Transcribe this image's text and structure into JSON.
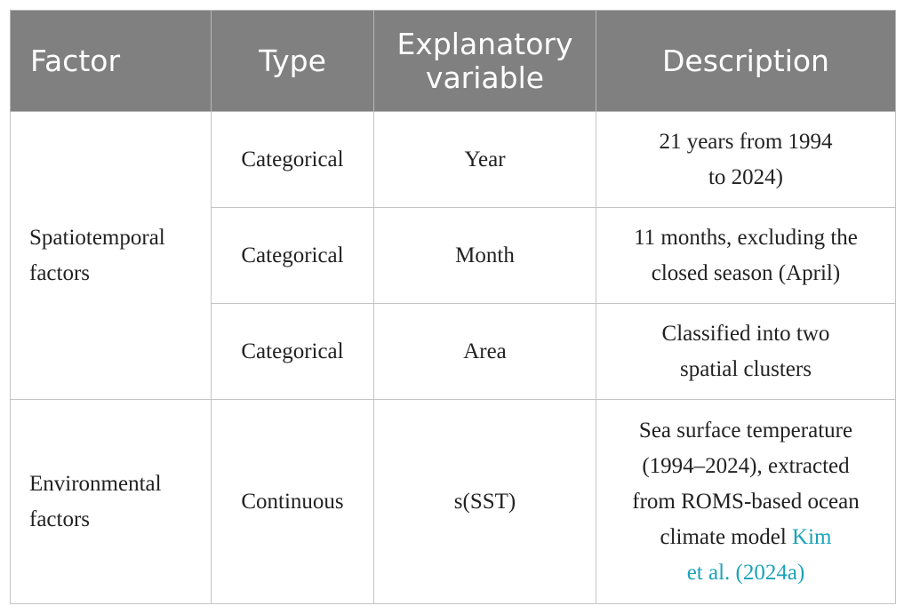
{
  "table": {
    "headers": {
      "factor": "Factor",
      "type": "Type",
      "variable_line1": "Explanatory",
      "variable_line2": "variable",
      "description": "Description"
    },
    "groups": [
      {
        "factor_line1": "Spatiotemporal",
        "factor_line2": "factors",
        "rows": [
          {
            "type": "Categorical",
            "variable": "Year",
            "description_lines": [
              "21 years from 1994",
              "to 2024)"
            ]
          },
          {
            "type": "Categorical",
            "variable": "Month",
            "description_lines": [
              "11 months, excluding the",
              "closed season (April)"
            ]
          },
          {
            "type": "Categorical",
            "variable": "Area",
            "description_lines": [
              "Classified into two",
              "spatial clusters"
            ]
          }
        ]
      },
      {
        "factor_line1": "Environmental",
        "factor_line2": "factors",
        "rows": [
          {
            "type": "Continuous",
            "variable": "s(SST)",
            "description_lines": [
              "Sea surface temperature",
              "(1994–2024), extracted",
              "from ROMS-based ocean"
            ],
            "description_line4_text": "climate model ",
            "citation_part1": "Kim",
            "citation_part2": "et al. (2024a)"
          }
        ]
      }
    ]
  },
  "colors": {
    "header_bg": "#808080",
    "header_text": "#ffffff",
    "body_text": "#222222",
    "citation": "#1aa3b8",
    "border": "#c4c4c4"
  }
}
